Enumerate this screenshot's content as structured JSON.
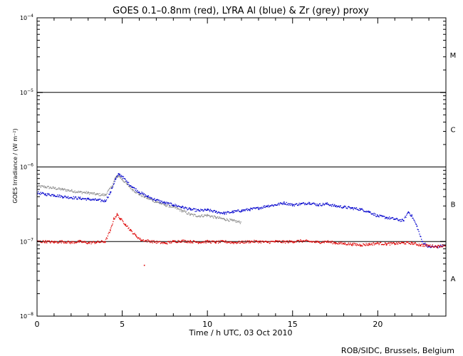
{
  "chart_data": {
    "type": "scatter",
    "title": "GOES 0.1–0.8nm (red), LYRA Al (blue) & Zr (grey) proxy",
    "xlabel": "Time / h UTC, 03 Oct 2010",
    "ylabel": "GOES Irradiance / (W m⁻²)",
    "xlim": [
      0,
      24
    ],
    "ylim": [
      1e-08,
      0.0001
    ],
    "yscale": "log",
    "x_ticks": [
      0,
      5,
      10,
      15,
      20
    ],
    "y_ticks": [
      {
        "value": 1e-08,
        "base": "10",
        "exp": "−8"
      },
      {
        "value": 1e-07,
        "base": "10",
        "exp": "−7"
      },
      {
        "value": 1e-06,
        "base": "10",
        "exp": "−6"
      },
      {
        "value": 1e-05,
        "base": "10",
        "exp": "−5"
      },
      {
        "value": 0.0001,
        "base": "10",
        "exp": "−4"
      }
    ],
    "class_lines": [
      1e-07,
      1e-06,
      1e-05
    ],
    "flare_classes": [
      {
        "label": "A",
        "value": 3.2e-08
      },
      {
        "label": "B",
        "value": 3.2e-07
      },
      {
        "label": "C",
        "value": 3.2e-06
      },
      {
        "label": "M",
        "value": 3.2e-05
      }
    ],
    "series": [
      {
        "color": "#8c8c8c",
        "x": [
          0,
          0.5,
          1,
          1.5,
          2,
          2.5,
          3,
          3.5,
          4,
          4.4,
          4.6,
          4.8,
          5,
          5.3,
          5.6,
          6,
          6.5,
          7,
          7.5,
          8,
          8.5,
          9,
          9.5,
          10,
          10.5,
          11,
          11.5,
          12
        ],
        "y": [
          5.5e-07,
          5.4e-07,
          5.2e-07,
          5e-07,
          4.8e-07,
          4.6e-07,
          4.5e-07,
          4.3e-07,
          4.2e-07,
          5.5e-07,
          7.2e-07,
          7.6e-07,
          6.8e-07,
          5.8e-07,
          5e-07,
          4.3e-07,
          3.8e-07,
          3.4e-07,
          3.1e-07,
          2.9e-07,
          2.6e-07,
          2.3e-07,
          2.2e-07,
          2.25e-07,
          2.1e-07,
          2e-07,
          1.9e-07,
          1.8e-07
        ]
      },
      {
        "color": "#0000cc",
        "x": [
          0,
          0.5,
          1,
          1.5,
          2,
          2.5,
          3,
          3.5,
          4,
          4.3,
          4.6,
          4.8,
          5,
          5.3,
          5.6,
          6,
          6.5,
          7,
          7.5,
          8,
          8.5,
          9,
          9.5,
          10,
          10.5,
          11,
          11.5,
          12,
          12.5,
          13,
          13.5,
          14,
          14.5,
          15,
          15.5,
          16,
          16.5,
          17,
          17.5,
          18,
          18.5,
          19,
          19.5,
          20,
          20.5,
          21,
          21.5,
          21.8,
          22,
          22.3,
          22.6,
          23,
          23.5,
          24
        ],
        "y": [
          4.5e-07,
          4.3e-07,
          4.2e-07,
          4e-07,
          3.9e-07,
          3.8e-07,
          3.7e-07,
          3.6e-07,
          3.5e-07,
          4.5e-07,
          6.8e-07,
          8e-07,
          7.5e-07,
          6.2e-07,
          5.4e-07,
          4.6e-07,
          4e-07,
          3.6e-07,
          3.3e-07,
          3.1e-07,
          2.9e-07,
          2.7e-07,
          2.6e-07,
          2.65e-07,
          2.5e-07,
          2.4e-07,
          2.5e-07,
          2.6e-07,
          2.7e-07,
          2.8e-07,
          3e-07,
          3.1e-07,
          3.3e-07,
          3.1e-07,
          3.2e-07,
          3.3e-07,
          3.1e-07,
          3.2e-07,
          3e-07,
          2.9e-07,
          2.8e-07,
          2.7e-07,
          2.5e-07,
          2.2e-07,
          2.1e-07,
          2e-07,
          1.9e-07,
          2.5e-07,
          2.2e-07,
          1.6e-07,
          1e-07,
          8.5e-08,
          8.5e-08,
          9e-08
        ]
      },
      {
        "color": "#dd0000",
        "x": [
          0,
          0.5,
          1,
          1.5,
          2,
          2.5,
          3,
          3.5,
          4,
          4.3,
          4.5,
          4.7,
          4.9,
          5.2,
          5.5,
          5.8,
          6.1,
          7.5,
          8,
          8.5,
          9,
          9.5,
          10,
          10.5,
          11,
          11.5,
          12,
          12.5,
          13,
          13.5,
          14,
          14.5,
          15,
          15.5,
          16,
          16.5,
          17,
          17.5,
          18,
          18.5,
          19,
          19.5,
          20,
          20.5,
          21,
          21.5,
          22,
          22.5,
          23,
          23.5,
          24
        ],
        "y": [
          1e-07,
          1e-07,
          9.8e-08,
          1e-07,
          9.7e-08,
          1e-07,
          9.6e-08,
          9.8e-08,
          1e-07,
          1.4e-07,
          2e-07,
          2.3e-07,
          2e-07,
          1.7e-07,
          1.4e-07,
          1.2e-07,
          1.05e-07,
          9.5e-08,
          1e-07,
          1.02e-07,
          1e-07,
          9.8e-08,
          1e-07,
          9.8e-08,
          1e-07,
          9.7e-08,
          9.8e-08,
          1e-07,
          1e-07,
          9.8e-08,
          1e-07,
          9.9e-08,
          1e-07,
          1.02e-07,
          1e-07,
          9.8e-08,
          1e-07,
          9.6e-08,
          9.4e-08,
          9.2e-08,
          9e-08,
          9.2e-08,
          9.5e-08,
          9.3e-08,
          9.4e-08,
          9.6e-08,
          9.5e-08,
          9e-08,
          8.8e-08,
          8.6e-08,
          9e-08
        ]
      }
    ],
    "isolated_points": [
      {
        "x": 6.3,
        "y": 4.8e-08,
        "color": "#dd0000"
      }
    ]
  },
  "credit": "ROB/SIDC, Brussels, Belgium"
}
